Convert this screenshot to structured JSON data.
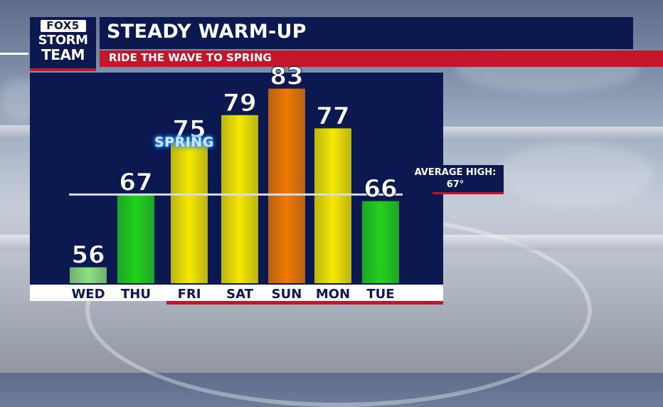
{
  "logo": {
    "line1": "FOX5",
    "line2": "STORM",
    "line3": "TEAM"
  },
  "header": {
    "title": "STEADY WARM-UP",
    "subtitle": "RIDE THE WAVE TO SPRING"
  },
  "annotation": {
    "spring_label": "SPRING"
  },
  "average": {
    "label": "AVERAGE HIGH:",
    "value": "67°",
    "value_num": 67
  },
  "colors": {
    "navy": "#0c1850",
    "red": "#c4162a",
    "green": "#22d21a",
    "light_green": "#8fe07f",
    "yellow": "#f5e800",
    "orange": "#f07a00"
  },
  "chart_data": {
    "type": "bar",
    "categories": [
      "WED",
      "THU",
      "FRI",
      "SAT",
      "SUN",
      "MON",
      "TUE"
    ],
    "values": [
      56,
      67,
      75,
      79,
      83,
      77,
      66
    ],
    "bar_colors": [
      "light_green",
      "green",
      "yellow",
      "yellow",
      "orange",
      "yellow",
      "green"
    ],
    "reference_line": 67,
    "title": "STEADY WARM-UP",
    "subtitle": "RIDE THE WAVE TO SPRING"
  }
}
